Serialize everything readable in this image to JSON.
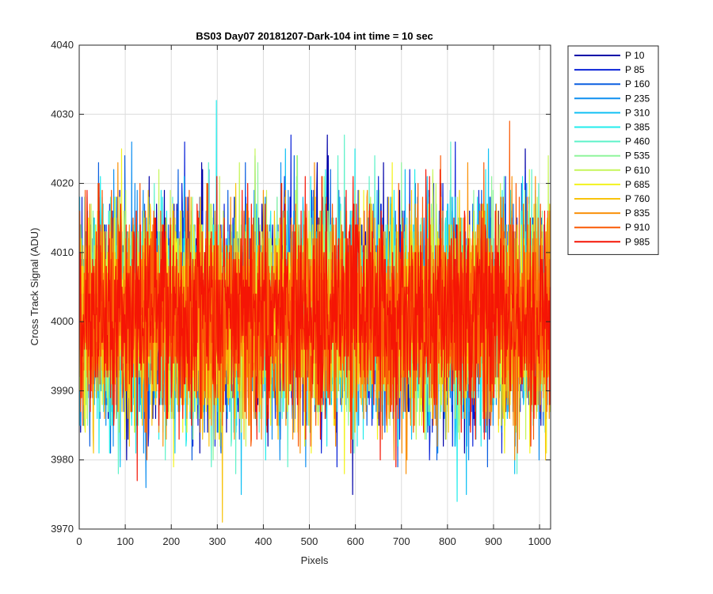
{
  "chart_data": {
    "type": "line",
    "title": "BS03 Day07 20181207-Dark-104 int time = 10 sec",
    "xlabel": "Pixels",
    "ylabel": "Cross Track Signal (ADU)",
    "xlim": [
      0,
      1024
    ],
    "ylim": [
      3970,
      4040
    ],
    "xticks": [
      0,
      100,
      200,
      300,
      400,
      500,
      600,
      700,
      800,
      900,
      1000
    ],
    "yticks": [
      3970,
      3980,
      3990,
      4000,
      4010,
      4020,
      4030,
      4040
    ],
    "grid": true,
    "legend_position": "outside-top-right",
    "noise": {
      "points": 1024,
      "mean": 4001,
      "std": 7.5
    },
    "series": [
      {
        "name": "P 10",
        "color": "#0000a8",
        "seed": 11
      },
      {
        "name": "P 85",
        "color": "#0a23d8",
        "seed": 23
      },
      {
        "name": "P 160",
        "color": "#0b5fe0",
        "seed": 37
      },
      {
        "name": "P 235",
        "color": "#0f8ff0",
        "seed": 41
      },
      {
        "name": "P 310",
        "color": "#10c0f4",
        "seed": 53
      },
      {
        "name": "P 385",
        "color": "#22ecec",
        "seed": 67
      },
      {
        "name": "P 460",
        "color": "#5ef2c9",
        "seed": 71
      },
      {
        "name": "P 535",
        "color": "#8ff59c",
        "seed": 83
      },
      {
        "name": "P 610",
        "color": "#c6f55a",
        "seed": 97
      },
      {
        "name": "P 685",
        "color": "#f3f31d",
        "seed": 101
      },
      {
        "name": "P 760",
        "color": "#f8c30b",
        "seed": 113
      },
      {
        "name": "P 835",
        "color": "#fa9109",
        "seed": 127
      },
      {
        "name": "P 910",
        "color": "#fa5a06",
        "seed": 131
      },
      {
        "name": "P 985",
        "color": "#f51505",
        "seed": 149
      }
    ]
  }
}
